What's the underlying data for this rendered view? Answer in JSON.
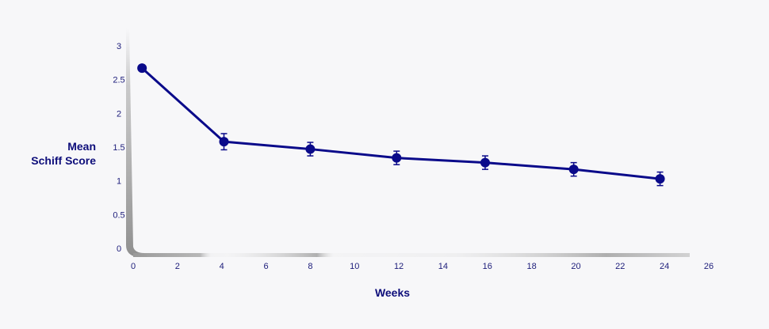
{
  "chart_data": {
    "type": "line",
    "title": "",
    "xlabel": "Weeks",
    "ylabel_lines": [
      "Mean",
      "Schiff Score"
    ],
    "xlim": [
      0,
      26
    ],
    "ylim": [
      0,
      3
    ],
    "x_ticks": [
      0,
      2,
      4,
      6,
      8,
      10,
      12,
      14,
      16,
      18,
      20,
      22,
      24,
      26
    ],
    "y_ticks": [
      {
        "value": 0,
        "label": "0"
      },
      {
        "value": 0.5,
        "label": "0.5"
      },
      {
        "value": 1,
        "label": "1"
      },
      {
        "value": 1.5,
        "label": "1.5"
      },
      {
        "value": 2,
        "label": "2"
      },
      {
        "value": 2.5,
        "label": "2.5"
      },
      {
        "value": 3,
        "label": "3"
      }
    ],
    "grid": false,
    "series": [
      {
        "color": "#0a0a8a",
        "points": [
          {
            "x": 0.4,
            "y": 2.67,
            "err": 0
          },
          {
            "x": 4.1,
            "y": 1.58,
            "err": 0.12
          },
          {
            "x": 8.0,
            "y": 1.47,
            "err": 0.1
          },
          {
            "x": 11.9,
            "y": 1.34,
            "err": 0.1
          },
          {
            "x": 15.9,
            "y": 1.27,
            "err": 0.1
          },
          {
            "x": 19.9,
            "y": 1.17,
            "err": 0.1
          },
          {
            "x": 23.8,
            "y": 1.03,
            "err": 0.1
          }
        ]
      }
    ]
  }
}
